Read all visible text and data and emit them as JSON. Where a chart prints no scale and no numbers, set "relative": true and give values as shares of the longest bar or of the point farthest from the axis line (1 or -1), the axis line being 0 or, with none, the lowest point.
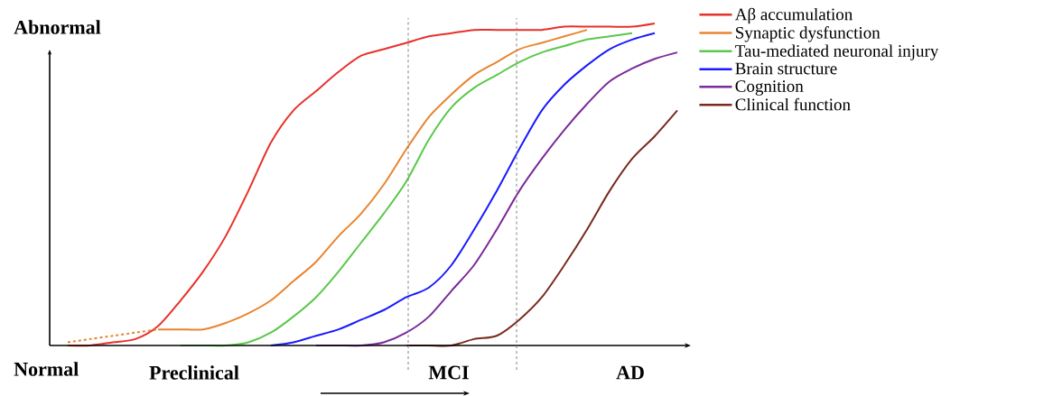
{
  "chart_data": {
    "type": "line",
    "relative": true,
    "categories": [
      null,
      null,
      null,
      null,
      null,
      null,
      null,
      null,
      null,
      null,
      null,
      null,
      null,
      null,
      null,
      null,
      null,
      null,
      null,
      null,
      null,
      null,
      null,
      null,
      null,
      null,
      null,
      null
    ],
    "series": [
      {
        "name": "Aβ accumulation",
        "color": "#e8312b",
        "values": [
          0,
          0,
          0.01,
          0.02,
          0.06,
          0.14,
          0.23,
          0.34,
          0.48,
          0.63,
          0.73,
          0.79,
          0.85,
          0.9,
          0.92,
          0.94,
          0.96,
          0.97,
          0.98,
          0.98,
          0.98,
          0.98,
          0.99,
          0.99,
          0.99,
          0.99,
          1,
          null
        ]
      },
      {
        "color": "#e9842f",
        "line_style": "dashed",
        "values": [
          0.01,
          0.02,
          0.03,
          0.04,
          0.05,
          null,
          null,
          null,
          null,
          null,
          null,
          null,
          null,
          null,
          null,
          null,
          null,
          null,
          null,
          null,
          null,
          null,
          null,
          null,
          null,
          null,
          null,
          null
        ]
      },
      {
        "name": "Synaptic dysfunction",
        "color": "#e9842f",
        "values": [
          null,
          null,
          null,
          null,
          0.05,
          0.05,
          0.05,
          0.07,
          0.1,
          0.14,
          0.2,
          0.26,
          0.34,
          0.41,
          0.5,
          0.61,
          0.71,
          0.78,
          0.84,
          0.88,
          0.92,
          0.94,
          0.96,
          0.98,
          null,
          null,
          null,
          null
        ]
      },
      {
        "name": "Tau-mediated neuronal injury",
        "color": "#5ac84a",
        "values": [
          null,
          null,
          null,
          null,
          null,
          0,
          0,
          0,
          0.01,
          0.04,
          0.09,
          0.15,
          0.23,
          0.32,
          0.41,
          0.51,
          0.64,
          0.74,
          0.8,
          0.84,
          0.88,
          0.91,
          0.93,
          0.95,
          0.96,
          0.97,
          null,
          null
        ]
      },
      {
        "name": "Brain structure",
        "color": "#1a1aff",
        "values": [
          null,
          null,
          null,
          null,
          null,
          null,
          null,
          null,
          null,
          0,
          0.01,
          0.03,
          0.05,
          0.08,
          0.11,
          0.15,
          0.18,
          0.25,
          0.36,
          0.48,
          0.61,
          0.73,
          0.81,
          0.87,
          0.92,
          0.95,
          0.97,
          null
        ]
      },
      {
        "name": "Cognition",
        "color": "#7a2a9a",
        "values": [
          null,
          null,
          null,
          null,
          null,
          null,
          null,
          null,
          null,
          null,
          null,
          0,
          0,
          0,
          0.01,
          0.04,
          0.09,
          0.17,
          0.25,
          0.36,
          0.48,
          0.58,
          0.67,
          0.75,
          0.82,
          0.86,
          0.89,
          0.91
        ]
      },
      {
        "name": "Clinical  function",
        "color": "#7a2a1e",
        "values": [
          null,
          null,
          null,
          null,
          null,
          null,
          null,
          null,
          null,
          null,
          null,
          null,
          null,
          null,
          null,
          0,
          0,
          0,
          0.02,
          0.03,
          0.08,
          0.15,
          0.25,
          0.36,
          0.48,
          0.58,
          0.65,
          0.73
        ]
      }
    ],
    "annotations": [
      "Abnormal",
      "Normal",
      "Preclinical",
      "MCI",
      "AD"
    ],
    "legend": "right"
  }
}
